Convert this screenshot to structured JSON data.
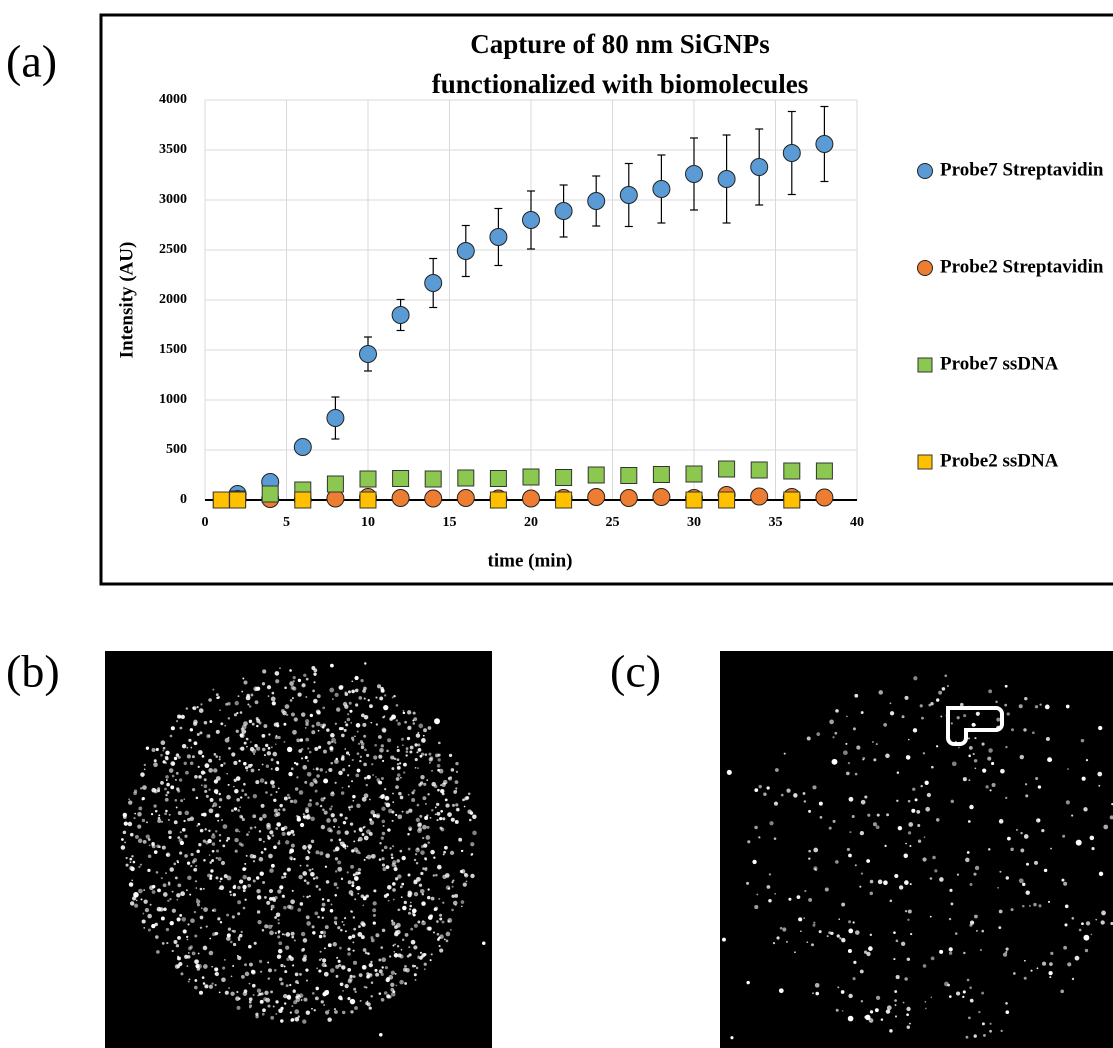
{
  "panels": {
    "a": "(a)",
    "b": "(b)",
    "c": "(c)"
  },
  "chart_data": {
    "type": "scatter",
    "title": [
      "Capture of 80 nm SiGNPs",
      "functionalized with biomolecules"
    ],
    "x_label": "time  (min)",
    "y_label": "Intensity  (AU)",
    "xlim": [
      0,
      40
    ],
    "xticks": [
      0,
      5,
      10,
      15,
      20,
      25,
      30,
      35,
      40
    ],
    "ylim": [
      0,
      4000
    ],
    "yticks": [
      0,
      500,
      1000,
      1500,
      2000,
      2500,
      3000,
      3500,
      4000
    ],
    "grid": true,
    "legend": "right",
    "series": [
      {
        "name": "Probe7 Streptavidin",
        "color": "#5b9bd5",
        "marker": "circle",
        "x": [
          2,
          4,
          6,
          8,
          10,
          12,
          14,
          16,
          18,
          20,
          22,
          24,
          26,
          28,
          30,
          32,
          34,
          36,
          38
        ],
        "values": [
          60,
          180,
          530,
          820,
          1460,
          1850,
          2170,
          2490,
          2630,
          2800,
          2890,
          2990,
          3050,
          3110,
          3260,
          3210,
          3330,
          3470,
          3560
        ],
        "errors": [
          0,
          0,
          0,
          210,
          170,
          155,
          245,
          255,
          285,
          290,
          260,
          250,
          315,
          340,
          360,
          440,
          380,
          415,
          375
        ]
      },
      {
        "name": "Probe2 Streptavidin",
        "color": "#ed7d31",
        "marker": "circle",
        "x": [
          2,
          4,
          6,
          8,
          10,
          12,
          14,
          16,
          18,
          20,
          22,
          24,
          26,
          28,
          30,
          32,
          34,
          36,
          38
        ],
        "values": [
          10,
          10,
          5,
          15,
          30,
          20,
          15,
          20,
          15,
          15,
          20,
          30,
          20,
          30,
          20,
          50,
          35,
          30,
          25
        ]
      },
      {
        "name": "Probe7 ssDNA",
        "color": "#8cc750",
        "marker": "square",
        "x": [
          1,
          2,
          4,
          6,
          8,
          10,
          12,
          14,
          16,
          18,
          20,
          22,
          24,
          26,
          28,
          30,
          32,
          34,
          36,
          38
        ],
        "values": [
          0,
          10,
          60,
          100,
          160,
          210,
          215,
          210,
          220,
          215,
          230,
          225,
          250,
          245,
          255,
          260,
          310,
          300,
          290,
          290
        ]
      },
      {
        "name": "Probe2 ssDNA",
        "color": "#ffc000",
        "marker": "square",
        "x": [
          1,
          2,
          6,
          10,
          18,
          22,
          30,
          32,
          36
        ],
        "values": [
          0,
          0,
          0,
          0,
          0,
          0,
          0,
          0,
          0
        ]
      }
    ]
  }
}
